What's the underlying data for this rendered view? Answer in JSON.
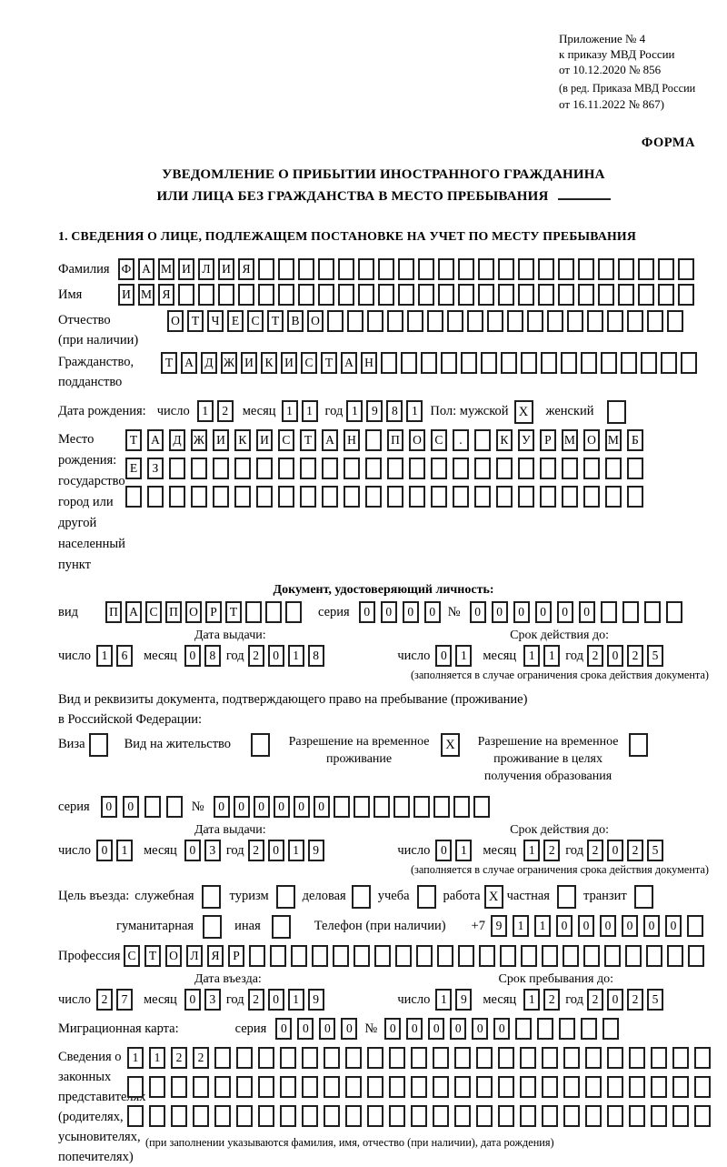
{
  "header": {
    "appendix": [
      "Приложение № 4",
      "к приказу МВД России",
      "от 10.12.2020 № 856"
    ],
    "appendix_note": [
      "(в ред. Приказа МВД России",
      "от 16.11.2022 № 867)"
    ],
    "form_label": "ФОРМА",
    "title_line1": "УВЕДОМЛЕНИЕ О ПРИБЫТИИ ИНОСТРАННОГО ГРАЖДАНИНА",
    "title_line2": "ИЛИ ЛИЦА БЕЗ ГРАЖДАНСТВА В МЕСТО ПРЕБЫВАНИЯ",
    "section1": "1. СВЕДЕНИЯ О ЛИЦЕ, ПОДЛЕЖАЩЕМ ПОСТАНОВКЕ НА УЧЕТ ПО МЕСТУ ПРЕБЫВАНИЯ"
  },
  "person": {
    "surname": {
      "label": "Фамилия",
      "value": "ФАМИЛИЯ",
      "cells": 29
    },
    "name": {
      "label": "Имя",
      "value": "ИМЯ",
      "cells": 29
    },
    "patronymic": {
      "label_line1": "Отчество",
      "label_line2": "(при наличии)",
      "value": "ОТЧЕСТВО",
      "cells": 26
    },
    "citizenship": {
      "label_line1": "Гражданство,",
      "label_line2": "подданство",
      "value": "ТАДЖИКИСТАН",
      "cells": 27
    },
    "birth_date": {
      "label": "Дата рождения:",
      "day_label": "число",
      "day": {
        "value": "12",
        "cells": 2
      },
      "month_label": "месяц",
      "month": {
        "value": "11",
        "cells": 2
      },
      "year_label": "год",
      "year": {
        "value": "1981",
        "cells": 4
      }
    },
    "sex": {
      "label": "Пол: мужской",
      "male_mark": "X",
      "female_label": "женский",
      "female_mark": ""
    },
    "birth_place": {
      "label_lines": [
        "Место рождения:",
        "государство",
        "город или другой",
        "населенный пункт"
      ],
      "row1": {
        "value": "ТАДЖИКИСТАН ПОС. КУРМОМБ",
        "cells": 24
      },
      "row2": {
        "value": "ЕЗ",
        "cells": 24
      },
      "row3": {
        "value": "",
        "cells": 24
      }
    }
  },
  "identity_doc": {
    "heading": "Документ, удостоверяющий личность:",
    "kind_label": "вид",
    "kind": {
      "value": "ПАСПОРТ",
      "cells": 10
    },
    "series_label": "серия",
    "series": {
      "value": "0000",
      "cells": 4
    },
    "number_label": "№",
    "number": {
      "value": "000000",
      "cells": 10
    },
    "issue_head": "Дата выдачи:",
    "expiry_head": "Срок действия до:",
    "issue": {
      "day_label": "число",
      "day": {
        "value": "16",
        "cells": 2
      },
      "month_label": "месяц",
      "month": {
        "value": "08",
        "cells": 2
      },
      "year_label": "год",
      "year": {
        "value": "2018",
        "cells": 4
      }
    },
    "expiry": {
      "day_label": "число",
      "day": {
        "value": "01",
        "cells": 2
      },
      "month_label": "месяц",
      "month": {
        "value": "11",
        "cells": 2
      },
      "year_label": "год",
      "year": {
        "value": "2025",
        "cells": 4
      }
    },
    "note": "(заполняется в случае ограничения срока действия документа)"
  },
  "residence_doc": {
    "line1": "Вид и реквизиты документа, подтверждающего право на пребывание (проживание)",
    "line2": "в Российской Федерации:",
    "options": [
      {
        "label": "Виза",
        "mark": ""
      },
      {
        "label": "Вид на жительство",
        "mark": ""
      },
      {
        "label": "Разрешение на временное проживание",
        "mark": "X"
      },
      {
        "label": "Разрешение на временное проживание в целях получения образования",
        "mark": ""
      }
    ],
    "series_label": "серия",
    "series": {
      "value": "00",
      "cells": 4
    },
    "number_label": "№",
    "number": {
      "value": "000000",
      "cells": 14
    },
    "issue_head": "Дата выдачи:",
    "expiry_head": "Срок действия до:",
    "issue": {
      "day_label": "число",
      "day": {
        "value": "01",
        "cells": 2
      },
      "month_label": "месяц",
      "month": {
        "value": "03",
        "cells": 2
      },
      "year_label": "год",
      "year": {
        "value": "2019",
        "cells": 4
      }
    },
    "expiry": {
      "day_label": "число",
      "day": {
        "value": "01",
        "cells": 2
      },
      "month_label": "месяц",
      "month": {
        "value": "12",
        "cells": 2
      },
      "year_label": "год",
      "year": {
        "value": "2025",
        "cells": 4
      }
    },
    "note": "(заполняется в случае ограничения срока действия документа)"
  },
  "visit": {
    "purpose_label": "Цель въезда:",
    "purposes": [
      {
        "label": "служебная",
        "mark": ""
      },
      {
        "label": "туризм",
        "mark": ""
      },
      {
        "label": "деловая",
        "mark": ""
      },
      {
        "label": "учеба",
        "mark": ""
      },
      {
        "label": "работа",
        "mark": "X"
      },
      {
        "label": "частная",
        "mark": ""
      },
      {
        "label": "транзит",
        "mark": ""
      },
      {
        "label": "гуманитарная",
        "mark": ""
      },
      {
        "label": "иная",
        "mark": ""
      }
    ],
    "phone_label": "Телефон (при наличии)",
    "phone_prefix": "+7",
    "phone": {
      "value": "911000000",
      "cells": 10
    },
    "profession_label": "Профессия",
    "profession": {
      "value": "СТОЛЯР",
      "cells": 28
    },
    "entry_head": "Дата въезда:",
    "stay_head": "Срок пребывания до:",
    "entry": {
      "day_label": "число",
      "day": {
        "value": "27",
        "cells": 2
      },
      "month_label": "месяц",
      "month": {
        "value": "03",
        "cells": 2
      },
      "year_label": "год",
      "year": {
        "value": "2019",
        "cells": 4
      }
    },
    "stay": {
      "day_label": "число",
      "day": {
        "value": "19",
        "cells": 2
      },
      "month_label": "месяц",
      "month": {
        "value": "12",
        "cells": 2
      },
      "year_label": "год",
      "year": {
        "value": "2025",
        "cells": 4
      }
    },
    "migration_card_label": "Миграционная карта:",
    "mc_series_label": "серия",
    "mc_series": {
      "value": "0000",
      "cells": 4
    },
    "mc_number_label": "№",
    "mc_number": {
      "value": "000000",
      "cells": 11
    }
  },
  "representatives": {
    "label_lines": [
      "Сведения о",
      "законных",
      "представителях",
      "(родителях,",
      "усыновителях,",
      "попечителях)"
    ],
    "row1": {
      "value": "1122",
      "cells": 27
    },
    "row2": {
      "value": "",
      "cells": 27
    },
    "row3": {
      "value": "",
      "cells": 27
    },
    "note": "(при заполнении указываются фамилия, имя, отчество (при наличии), дата рождения)"
  }
}
